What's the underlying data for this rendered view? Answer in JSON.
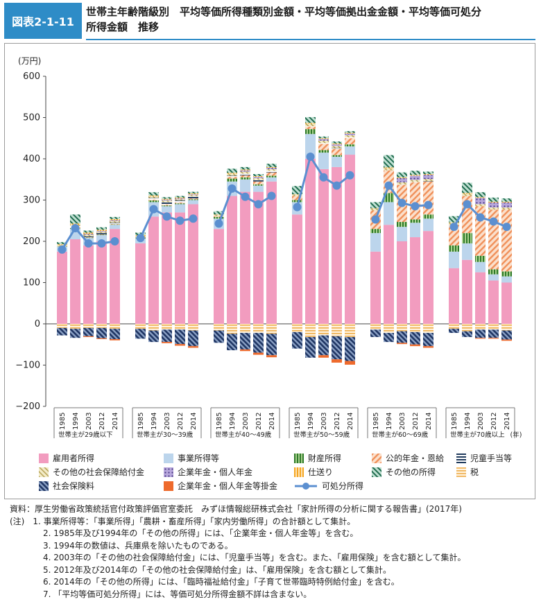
{
  "header": {
    "label": "図表2-1-11",
    "title_line1": "世帯主年齢階級別　平均等価所得種類別金額・平均等価拠出金金額・平均等価可処分",
    "title_line2": "所得金額　推移"
  },
  "chart_data": {
    "type": "bar",
    "stacked": true,
    "ylabel": "(万円)",
    "ylim": [
      -200,
      600
    ],
    "yticks": [
      600,
      500,
      400,
      300,
      200,
      100,
      0,
      -100,
      -200
    ],
    "ytick_labels": [
      "600",
      "500",
      "400",
      "300",
      "200",
      "100",
      "0",
      "−100",
      "−200"
    ],
    "x_unit": "(年)",
    "years": [
      "1985",
      "1994",
      "2003",
      "2012",
      "2014"
    ],
    "groups": [
      "世帯主が29歳以下",
      "世帯主が30～39歳",
      "世帯主が40～49歳",
      "世帯主が50～59歳",
      "世帯主が60～69歳",
      "世帯主が70歳以上"
    ],
    "grid": false,
    "legend_position": "bottom",
    "positive_series": [
      {
        "name": "雇用者所得",
        "key": "employee",
        "color": "#f29cbf",
        "values": [
          [
            175,
            205,
            190,
            200,
            230
          ],
          [
            195,
            260,
            270,
            270,
            290
          ],
          [
            230,
            310,
            320,
            320,
            345
          ],
          [
            265,
            400,
            375,
            380,
            410
          ],
          [
            175,
            240,
            200,
            210,
            225
          ],
          [
            135,
            155,
            125,
            105,
            100
          ]
        ]
      },
      {
        "name": "事業所得等",
        "key": "business",
        "color": "#bcd5ec",
        "values": [
          [
            12,
            25,
            18,
            15,
            10
          ],
          [
            12,
            35,
            15,
            20,
            10
          ],
          [
            25,
            35,
            30,
            15,
            10
          ],
          [
            30,
            60,
            40,
            25,
            20
          ],
          [
            45,
            55,
            35,
            35,
            30
          ],
          [
            40,
            40,
            25,
            15,
            15
          ]
        ]
      },
      {
        "name": "財産所得",
        "key": "property",
        "color": "#4f9a3a",
        "values": [
          [
            1,
            2,
            1,
            1,
            1
          ],
          [
            2,
            4,
            2,
            2,
            2
          ],
          [
            4,
            7,
            5,
            3,
            4
          ],
          [
            5,
            12,
            6,
            4,
            5
          ],
          [
            10,
            22,
            12,
            8,
            10
          ],
          [
            15,
            25,
            15,
            12,
            12
          ]
        ]
      },
      {
        "name": "公的年金・恩給",
        "key": "pension",
        "color": "#f0a070",
        "values": [
          [
            1,
            2,
            1,
            1,
            1
          ],
          [
            1,
            2,
            2,
            2,
            2
          ],
          [
            2,
            4,
            5,
            7,
            8
          ],
          [
            10,
            6,
            15,
            15,
            15
          ],
          [
            45,
            55,
            90,
            90,
            80
          ],
          [
            50,
            90,
            120,
            145,
            150
          ]
        ]
      },
      {
        "name": "児童手当等",
        "key": "child",
        "color": "#1f3a5c",
        "values": [
          [
            0,
            3,
            2,
            3,
            3
          ],
          [
            0,
            4,
            6,
            5,
            5
          ],
          [
            0,
            3,
            4,
            4,
            4
          ],
          [
            0,
            1,
            2,
            2,
            2
          ],
          [
            0,
            0,
            1,
            1,
            1
          ],
          [
            0,
            0,
            0,
            0,
            0
          ]
        ]
      },
      {
        "name": "その他の社会保障給付金",
        "key": "othersec",
        "color": "#c5b46a",
        "values": [
          [
            2,
            3,
            4,
            3,
            4
          ],
          [
            3,
            4,
            4,
            3,
            3
          ],
          [
            3,
            5,
            5,
            4,
            4
          ],
          [
            3,
            6,
            6,
            5,
            5
          ],
          [
            4,
            5,
            5,
            5,
            5
          ],
          [
            5,
            5,
            5,
            5,
            5
          ]
        ]
      },
      {
        "name": "企業年金・個人年金",
        "key": "corppen",
        "color": "#9b88c6",
        "values": [
          [
            0,
            0,
            2,
            2,
            2
          ],
          [
            0,
            0,
            2,
            2,
            2
          ],
          [
            0,
            0,
            3,
            3,
            3
          ],
          [
            0,
            0,
            4,
            4,
            4
          ],
          [
            0,
            0,
            10,
            10,
            10
          ],
          [
            0,
            0,
            15,
            12,
            12
          ]
        ]
      },
      {
        "name": "仕送り",
        "key": "remit",
        "color": "#f5a623",
        "values": [
          [
            2,
            3,
            3,
            3,
            3
          ],
          [
            2,
            2,
            2,
            2,
            2
          ],
          [
            1,
            2,
            2,
            2,
            2
          ],
          [
            1,
            2,
            2,
            2,
            2
          ],
          [
            1,
            2,
            2,
            2,
            2
          ],
          [
            1,
            2,
            2,
            2,
            2
          ]
        ]
      },
      {
        "name": "その他の所得",
        "key": "otherinc",
        "color": "#2a7a5e",
        "values": [
          [
            5,
            22,
            5,
            6,
            5
          ],
          [
            6,
            8,
            4,
            4,
            4
          ],
          [
            8,
            10,
            6,
            5,
            8
          ],
          [
            20,
            14,
            4,
            5,
            4
          ],
          [
            15,
            30,
            12,
            10,
            6
          ],
          [
            15,
            25,
            12,
            10,
            8
          ]
        ]
      }
    ],
    "negative_series": [
      {
        "name": "税",
        "key": "tax",
        "color": "#f6c78a",
        "values": [
          [
            -10,
            -12,
            -10,
            -10,
            -12
          ],
          [
            -12,
            -16,
            -14,
            -14,
            -16
          ],
          [
            -16,
            -24,
            -22,
            -22,
            -24
          ],
          [
            -20,
            -32,
            -28,
            -30,
            -32
          ],
          [
            -14,
            -22,
            -18,
            -20,
            -22
          ],
          [
            -12,
            -18,
            -14,
            -14,
            -16
          ]
        ]
      },
      {
        "name": "社会保険料",
        "key": "social",
        "color": "#2c4a7a",
        "values": [
          [
            -18,
            -22,
            -20,
            -25,
            -25
          ],
          [
            -24,
            -28,
            -30,
            -35,
            -38
          ],
          [
            -30,
            -40,
            -40,
            -48,
            -52
          ],
          [
            -40,
            -50,
            -48,
            -56,
            -58
          ],
          [
            -18,
            -22,
            -28,
            -30,
            -32
          ],
          [
            -10,
            -14,
            -20,
            -20,
            -22
          ]
        ]
      },
      {
        "name": "企業年金・個人年金等掛金",
        "key": "corpdep",
        "color": "#ee6a2c",
        "values": [
          [
            0,
            0,
            -2,
            -2,
            -3
          ],
          [
            0,
            0,
            -3,
            -4,
            -4
          ],
          [
            0,
            0,
            -4,
            -5,
            -5
          ],
          [
            0,
            0,
            -6,
            -8,
            -9
          ],
          [
            0,
            0,
            -3,
            -4,
            -4
          ],
          [
            0,
            0,
            -2,
            -2,
            -3
          ]
        ]
      }
    ],
    "line_series": {
      "name": "可処分所得",
      "color": "#5b8fd0",
      "values": [
        [
          180,
          232,
          195,
          195,
          200
        ],
        [
          208,
          278,
          260,
          250,
          255
        ],
        [
          243,
          328,
          308,
          290,
          310
        ],
        [
          283,
          405,
          355,
          335,
          360
        ],
        [
          253,
          335,
          293,
          285,
          288
        ],
        [
          235,
          290,
          258,
          248,
          235
        ]
      ]
    }
  },
  "notes": [
    {
      "text": "資料：厚生労働省政策統括官付政策評価官室委託　みずほ情報総研株式会社「家計所得の分析に関する報告書」(2017年)",
      "indent": false
    },
    {
      "text": "(注)　1. 事業所得等：「事業所得」「農耕・畜産所得」「家内労働所得」の合計額として集計。",
      "indent": false
    },
    {
      "text": "2. 1985年及び1994年の「その他の所得」には、「企業年金・個人年金等」を含む。",
      "indent": true
    },
    {
      "text": "3. 1994年の数値は、兵庫県を除いたものである。",
      "indent": true
    },
    {
      "text": "4. 2003年の「その他の社会保障給付金」には、「児童手当等」を含む。また、「雇用保険」を含む額として集計。",
      "indent": true
    },
    {
      "text": "5. 2012年及び2014年の「その他の社会保障給付金」は、「雇用保険」を含む額として集計。",
      "indent": true
    },
    {
      "text": "6. 2014年の「その他の所得」には、「臨時福祉給付金」「子育て世帯臨時特例給付金」を含む。",
      "indent": true
    },
    {
      "text": "7. 「平均等価可処分所得」には、等価可処分所得金額不詳は含まない。",
      "indent": true
    }
  ]
}
